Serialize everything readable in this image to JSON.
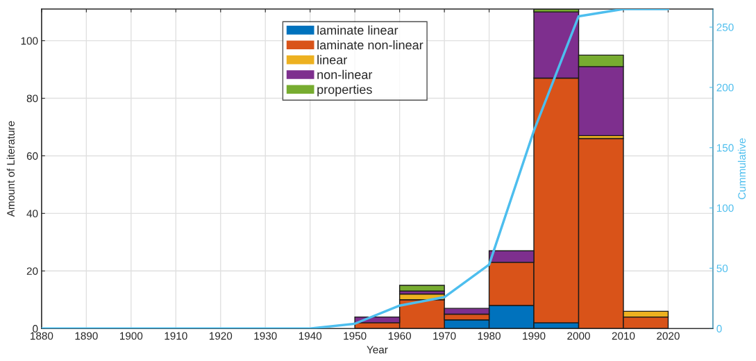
{
  "chart_data": {
    "type": "bar",
    "stacked": true,
    "xlabel": "Year",
    "ylabel": "Amount of Literature",
    "y2label": "Cummulative",
    "x": [
      1885,
      1895,
      1905,
      1915,
      1925,
      1935,
      1945,
      1955,
      1965,
      1975,
      1985,
      1995,
      2005,
      2015,
      2025
    ],
    "series": [
      {
        "name": "laminate linear",
        "color": "#0072bd",
        "values": [
          0,
          0,
          0,
          0,
          0,
          0,
          0,
          0,
          0,
          3,
          8,
          2,
          0,
          0,
          0
        ]
      },
      {
        "name": "laminate non-linear",
        "color": "#d95319",
        "values": [
          0,
          0,
          0,
          0,
          0,
          0,
          0,
          2,
          10,
          2,
          15,
          85,
          66,
          4,
          0
        ]
      },
      {
        "name": "linear",
        "color": "#edb120",
        "values": [
          0,
          0,
          0,
          0,
          0,
          0,
          0,
          0,
          2,
          0,
          0,
          0,
          1,
          2,
          0
        ]
      },
      {
        "name": "non-linear",
        "color": "#7e2f8e",
        "values": [
          0,
          0,
          0,
          0,
          0,
          0,
          0,
          2,
          1,
          2,
          4,
          23,
          24,
          0,
          0
        ]
      },
      {
        "name": "properties",
        "color": "#77ac30",
        "values": [
          0,
          0,
          0,
          0,
          0,
          0,
          0,
          0,
          2,
          0,
          0,
          1,
          4,
          0,
          0
        ]
      },
      {
        "type": "line",
        "axis": "y2",
        "color": "#4dbeee",
        "x": [
          1880,
          1890,
          1900,
          1910,
          1920,
          1930,
          1940,
          1950,
          1960,
          1970,
          1980,
          1990,
          2000,
          2010,
          2020
        ],
        "values": [
          0,
          0,
          0,
          0,
          0,
          0,
          0,
          4,
          19,
          26,
          53,
          164,
          259,
          265,
          265
        ]
      }
    ],
    "xlim": [
      1880,
      2030
    ],
    "xticks": [
      1880,
      1890,
      1900,
      1910,
      1920,
      1930,
      1940,
      1950,
      1960,
      1970,
      1980,
      1990,
      2000,
      2010,
      2020
    ],
    "ylim": [
      0,
      111
    ],
    "yticks": [
      0,
      20,
      40,
      60,
      80,
      100
    ],
    "y2lim": [
      0,
      265
    ],
    "y2ticks": [
      0,
      50,
      100,
      150,
      200,
      250
    ],
    "grid": true,
    "legend": "top"
  }
}
